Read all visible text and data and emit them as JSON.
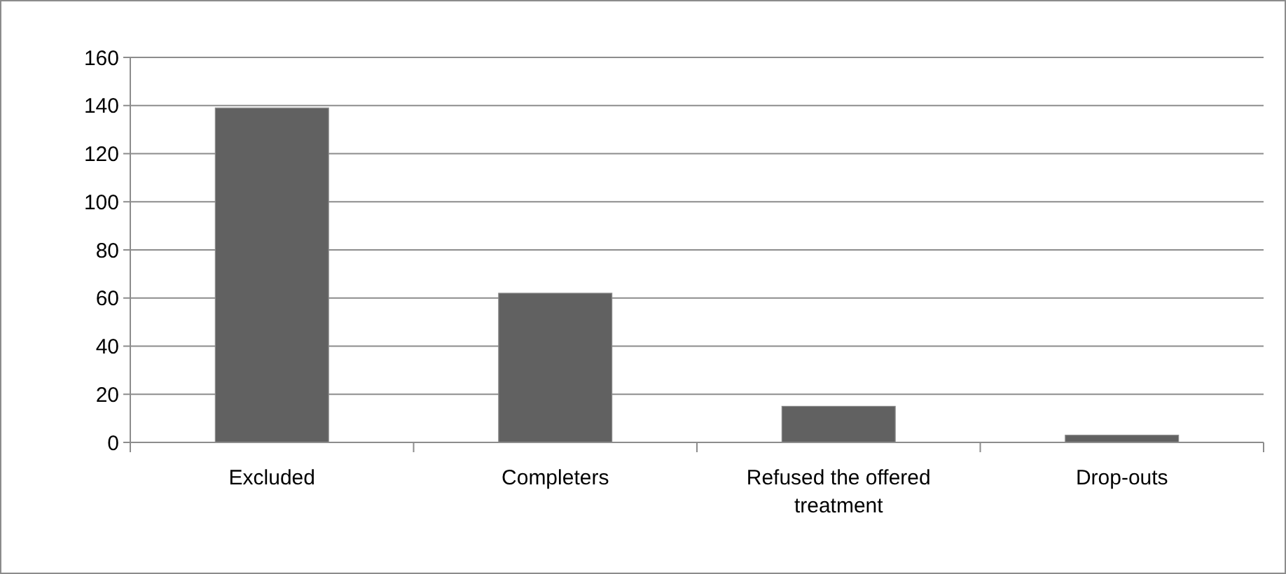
{
  "chart_data": {
    "type": "bar",
    "categories": [
      "Excluded",
      "Completers",
      "Refused the offered treatment",
      "Drop-outs"
    ],
    "values": [
      139,
      62,
      15,
      3
    ],
    "color": "#616161",
    "ylim": [
      0,
      160
    ],
    "yticks": [
      0,
      20,
      40,
      60,
      80,
      100,
      120,
      140,
      160
    ],
    "grid": "y"
  }
}
